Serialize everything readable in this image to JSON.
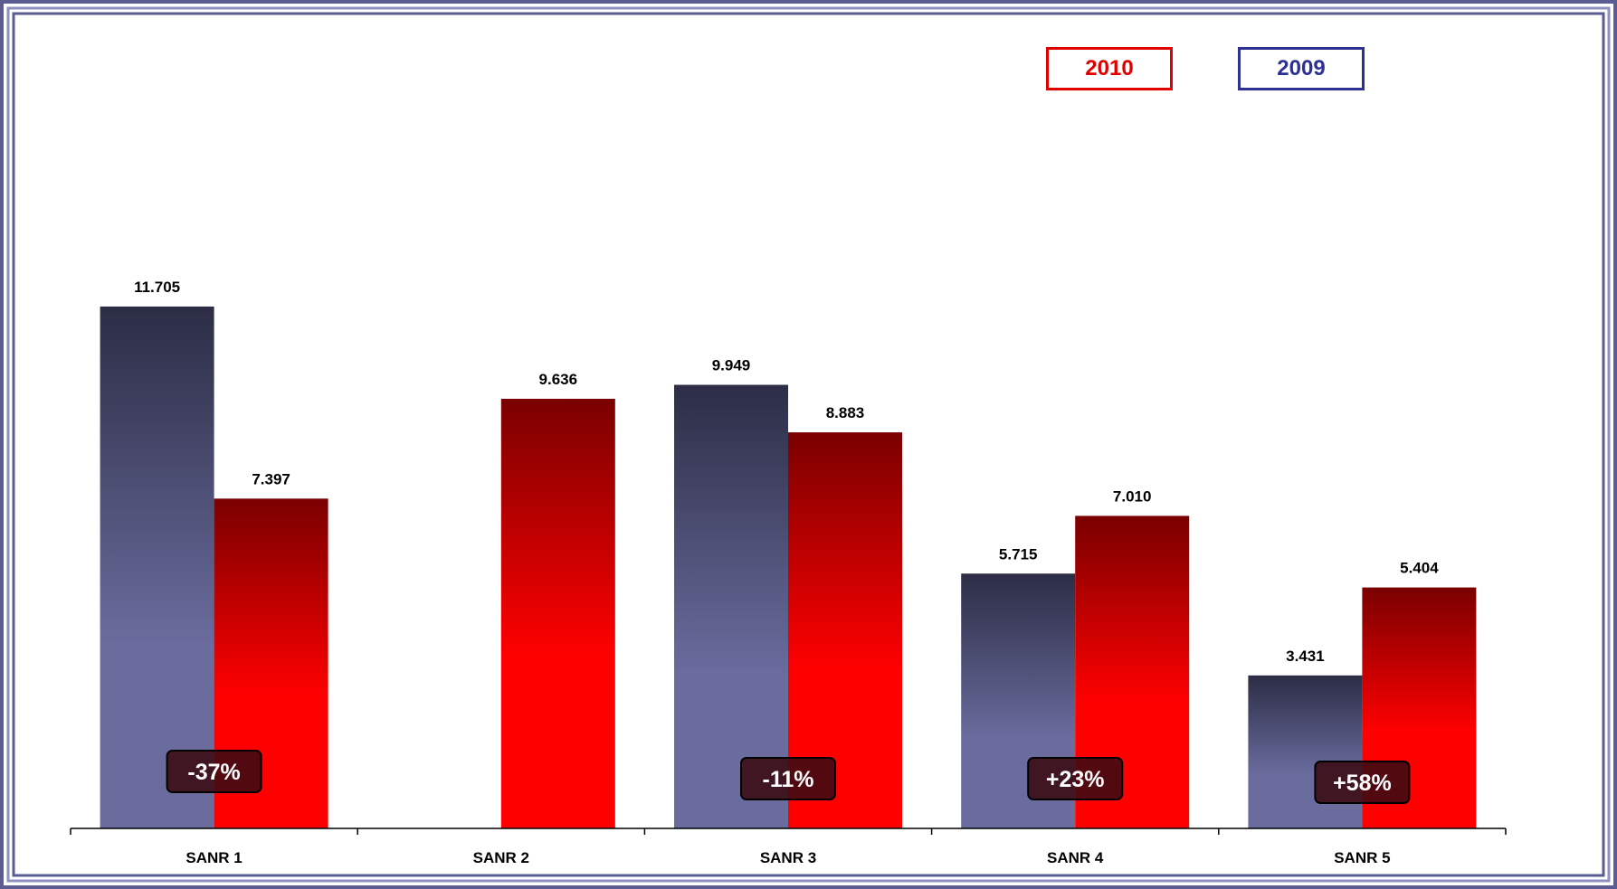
{
  "colors": {
    "frame_outer": "#5b5d92",
    "frame_inner": "#8d90c0",
    "series_2009_top": "#2c2d45",
    "series_2009_bottom": "#6a6c9e",
    "series_2010_top": "#7a0000",
    "series_2010_bottom": "#ff0000",
    "change_box_fill": "#3a0a12",
    "legend_2010": "#e00000",
    "legend_2009": "#2e3192"
  },
  "legend": {
    "placement": "top-right",
    "items": [
      {
        "label": "2010",
        "color": "#e00000"
      },
      {
        "label": "2009",
        "color": "#2e3192"
      }
    ]
  },
  "chart_data": {
    "type": "bar",
    "title": "",
    "xlabel": "",
    "ylabel": "",
    "categories": [
      "SANR 1",
      "SANR 2",
      "SANR 3",
      "SANR 4",
      "SANR 5"
    ],
    "series": [
      {
        "name": "2009",
        "values": [
          11.705,
          null,
          9.949,
          5.715,
          3.431
        ],
        "labels": [
          "11.705",
          "",
          "9.949",
          "5.715",
          "3.431"
        ]
      },
      {
        "name": "2010",
        "values": [
          7.397,
          9.636,
          8.883,
          7.01,
          5.404
        ],
        "labels": [
          "7.397",
          "9.636",
          "8.883",
          "7.010",
          "5.404"
        ]
      }
    ],
    "changes": [
      "-37%",
      "",
      "-11%",
      "+23%",
      "+58%"
    ],
    "ylim": [
      0,
      13
    ],
    "grid": false,
    "axis_visible": false
  }
}
